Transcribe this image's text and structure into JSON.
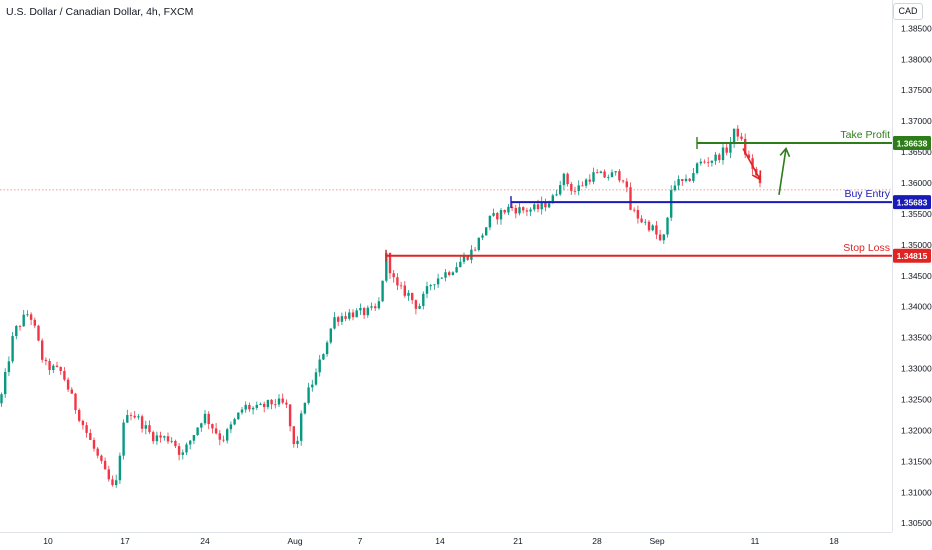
{
  "header": {
    "title": "U.S. Dollar / Canadian Dollar, 4h, FXCM",
    "currency": "CAD"
  },
  "chart_data": {
    "type": "candlestick",
    "symbol": "USDCAD",
    "timeframe": "4h",
    "ylim": [
      1.3035,
      1.3895
    ],
    "y_ticks": [
      "1.38500",
      "1.38000",
      "1.37500",
      "1.37000",
      "1.36500",
      "1.36000",
      "1.35500",
      "1.35000",
      "1.34500",
      "1.34000",
      "1.33500",
      "1.33000",
      "1.32500",
      "1.32000",
      "1.31500",
      "1.31000",
      "1.30500"
    ],
    "x_ticks": [
      "10",
      "17",
      "24",
      "Aug",
      "7",
      "14",
      "21",
      "28",
      "Sep",
      "11",
      "18"
    ],
    "grid": false,
    "last_price": 1.3588,
    "levels": [
      {
        "name": "Take Profit",
        "price": 1.36638,
        "price_label": "1.36638",
        "color": "#2e7d1a"
      },
      {
        "name": "Buy Entry",
        "price": 1.35683,
        "price_label": "1.35683",
        "color": "#1a1ab8"
      },
      {
        "name": "Stop Loss",
        "price": 1.34815,
        "price_label": "1.34815",
        "color": "#e02424"
      }
    ],
    "anchors": [
      [
        0,
        1.3243
      ],
      [
        14,
        1.3358
      ],
      [
        27,
        1.3388
      ],
      [
        32,
        1.338
      ],
      [
        44,
        1.3305
      ],
      [
        62,
        1.3293
      ],
      [
        75,
        1.3238
      ],
      [
        90,
        1.3183
      ],
      [
        105,
        1.313
      ],
      [
        115,
        1.3098
      ],
      [
        121,
        1.3178
      ],
      [
        126,
        1.3232
      ],
      [
        136,
        1.3222
      ],
      [
        152,
        1.319
      ],
      [
        172,
        1.3185
      ],
      [
        182,
        1.3158
      ],
      [
        204,
        1.3225
      ],
      [
        222,
        1.3183
      ],
      [
        244,
        1.3238
      ],
      [
        256,
        1.3233
      ],
      [
        274,
        1.3245
      ],
      [
        286,
        1.324
      ],
      [
        295,
        1.3163
      ],
      [
        304,
        1.3245
      ],
      [
        316,
        1.329
      ],
      [
        334,
        1.338
      ],
      [
        350,
        1.3388
      ],
      [
        366,
        1.339
      ],
      [
        378,
        1.3395
      ],
      [
        386,
        1.3482
      ],
      [
        396,
        1.343
      ],
      [
        408,
        1.342
      ],
      [
        418,
        1.3397
      ],
      [
        432,
        1.344
      ],
      [
        452,
        1.346
      ],
      [
        474,
        1.3492
      ],
      [
        490,
        1.354
      ],
      [
        510,
        1.356
      ],
      [
        522,
        1.3555
      ],
      [
        538,
        1.3558
      ],
      [
        554,
        1.3575
      ],
      [
        562,
        1.3612
      ],
      [
        574,
        1.3585
      ],
      [
        592,
        1.3612
      ],
      [
        606,
        1.361
      ],
      [
        616,
        1.3613
      ],
      [
        624,
        1.3608
      ],
      [
        630,
        1.3558
      ],
      [
        642,
        1.3538
      ],
      [
        652,
        1.3527
      ],
      [
        661,
        1.3502
      ],
      [
        666,
        1.3518
      ],
      [
        672,
        1.36
      ],
      [
        686,
        1.3598
      ],
      [
        698,
        1.363
      ],
      [
        716,
        1.364
      ],
      [
        728,
        1.3655
      ],
      [
        736,
        1.3688
      ],
      [
        746,
        1.3645
      ],
      [
        754,
        1.362
      ],
      [
        761,
        1.3588
      ]
    ],
    "arrows": [
      {
        "color": "#e02424",
        "points": [
          [
            1.3655,
            743
          ],
          [
            1.3605,
            760
          ]
        ]
      },
      {
        "color": "#2e7d1a",
        "points": [
          [
            1.358,
            779
          ],
          [
            1.3655,
            786
          ]
        ]
      }
    ]
  }
}
